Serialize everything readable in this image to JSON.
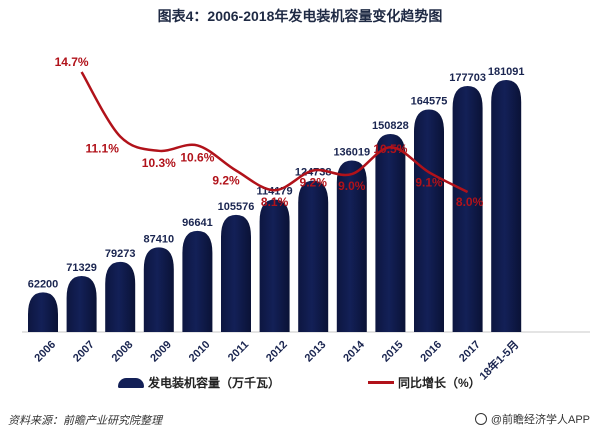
{
  "chart_data": {
    "type": "bar",
    "title": "图表4：2006-2018年发电装机容量变化趋势图",
    "categories": [
      "2006",
      "2007",
      "2008",
      "2009",
      "2010",
      "2011",
      "2012",
      "2013",
      "2014",
      "2015",
      "2016",
      "2017",
      "18年1-5月"
    ],
    "series": [
      {
        "name": "发电装机容量（万千瓦）",
        "type": "bar",
        "values": [
          62200,
          71329,
          79273,
          87410,
          96641,
          105576,
          114179,
          124738,
          136019,
          150828,
          164575,
          177703,
          181091
        ],
        "color": "#132057"
      },
      {
        "name": "同比增长（%）",
        "type": "line",
        "values": [
          null,
          14.7,
          11.1,
          10.3,
          10.6,
          9.2,
          8.1,
          9.2,
          9.0,
          10.5,
          9.1,
          8.0,
          null
        ],
        "labels": [
          "",
          "14.7%",
          "11.1%",
          "10.3%",
          "10.6%",
          "9.2%",
          "8.1%",
          "9.2%",
          "9.0%",
          "10.5%",
          "9.1%",
          "8.0%",
          ""
        ],
        "color": "#b1121a"
      }
    ],
    "legend": {
      "position": "bottom"
    },
    "grid": false
  },
  "footer": {
    "source": "资料来源：前瞻产业研究院整理",
    "brand": "@前瞻经济学人APP"
  }
}
